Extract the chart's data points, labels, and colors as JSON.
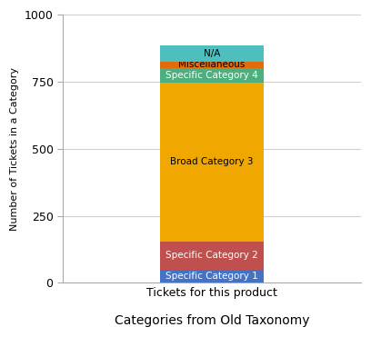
{
  "categories": [
    "Tickets for this product"
  ],
  "segments": [
    {
      "label": "Specific Category 1",
      "value": 50,
      "color": "#4472c4",
      "text_color": "white"
    },
    {
      "label": "Specific Category 2",
      "value": 105,
      "color": "#c0504d",
      "text_color": "white"
    },
    {
      "label": "Broad Category 3",
      "value": 590,
      "color": "#f0a800",
      "text_color": "black"
    },
    {
      "label": "Specific Category 4",
      "value": 55,
      "color": "#4caf7d",
      "text_color": "white"
    },
    {
      "label": "Miscelianeous",
      "value": 25,
      "color": "#e26b0a",
      "text_color": "black"
    },
    {
      "label": "N/A",
      "value": 60,
      "color": "#4dbfbf",
      "text_color": "black"
    }
  ],
  "title": "Categories from Old Taxonomy",
  "ylabel": "Number of Tickets in a Category",
  "ylim": [
    0,
    1000
  ],
  "yticks": [
    0,
    250,
    500,
    750,
    1000
  ],
  "background_color": "#ffffff",
  "grid_color": "#d0d0d0",
  "bar_width": 0.35
}
